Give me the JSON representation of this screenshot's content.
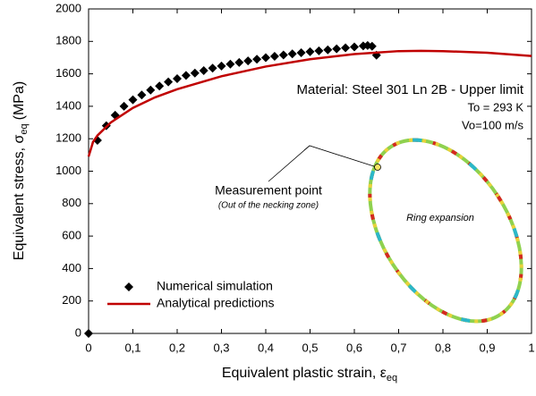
{
  "chart_data": {
    "type": "scatter-line",
    "xlabel": {
      "text": "Equivalent plastic strain, ε",
      "sub": "eq"
    },
    "ylabel": {
      "text": "Equivalent stress, σ",
      "sub": "eq",
      "suffix": "(MPa)"
    },
    "xlim": [
      0,
      1
    ],
    "ylim": [
      0,
      2000
    ],
    "xticks": [
      0,
      {
        "value": 0.1,
        "label": "0,1"
      },
      {
        "value": 0.2,
        "label": "0,2"
      },
      {
        "value": 0.3,
        "label": "0,3"
      },
      {
        "value": 0.4,
        "label": "0,4"
      },
      {
        "value": 0.5,
        "label": "0,5"
      },
      {
        "value": 0.6,
        "label": "0,6"
      },
      {
        "value": 0.7,
        "label": "0,7"
      },
      {
        "value": 0.8,
        "label": "0,8"
      },
      {
        "value": 0.9,
        "label": "0,9"
      },
      1
    ],
    "yticks": [
      0,
      200,
      400,
      600,
      800,
      1000,
      1200,
      1400,
      1600,
      1800,
      2000
    ],
    "legend": "lower left",
    "annotations": [
      "Material: Steel 301 Ln 2B - Upper limit",
      "To = 293 K",
      "Vo=100 m/s",
      "Measurement point",
      "(Out of the necking zone)",
      "Ring expansion"
    ],
    "series": [
      {
        "name": "Numerical simulation",
        "color": "#000000",
        "marker": "diamond",
        "x": [
          0,
          0.02,
          0.04,
          0.06,
          0.08,
          0.1,
          0.12,
          0.14,
          0.16,
          0.18,
          0.2,
          0.22,
          0.24,
          0.26,
          0.28,
          0.3,
          0.32,
          0.34,
          0.36,
          0.38,
          0.4,
          0.42,
          0.44,
          0.46,
          0.48,
          0.5,
          0.52,
          0.54,
          0.56,
          0.58,
          0.6,
          0.62,
          0.63,
          0.64,
          0.65
        ],
        "values": [
          0,
          1190,
          1280,
          1345,
          1400,
          1440,
          1470,
          1500,
          1525,
          1550,
          1570,
          1590,
          1605,
          1620,
          1635,
          1648,
          1660,
          1670,
          1680,
          1690,
          1700,
          1708,
          1716,
          1723,
          1730,
          1736,
          1742,
          1748,
          1754,
          1760,
          1766,
          1772,
          1775,
          1770,
          1715
        ]
      },
      {
        "name": "Analytical predictions",
        "color": "#c00000",
        "marker": "line",
        "x": [
          0,
          0.01,
          0.02,
          0.05,
          0.1,
          0.15,
          0.2,
          0.3,
          0.4,
          0.5,
          0.6,
          0.7,
          0.75,
          0.8,
          0.9,
          1
        ],
        "values": [
          1090,
          1180,
          1220,
          1300,
          1390,
          1455,
          1505,
          1585,
          1645,
          1690,
          1722,
          1740,
          1742,
          1740,
          1730,
          1710
        ]
      }
    ]
  }
}
